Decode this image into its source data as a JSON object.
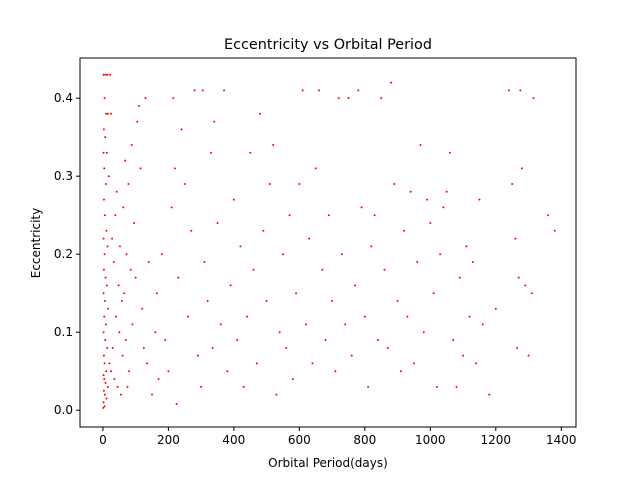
{
  "chart_data": {
    "type": "scatter",
    "title": "Eccentricity vs Orbital Period",
    "xlabel": "Orbital Period(days)",
    "ylabel": "Eccentricity",
    "xlim": [
      -70,
      1445
    ],
    "ylim": [
      -0.0215,
      0.4515
    ],
    "xticks": [
      0,
      200,
      400,
      600,
      800,
      1000,
      1200,
      1400
    ],
    "xtick_labels": [
      "0",
      "200",
      "400",
      "600",
      "800",
      "1000",
      "1200",
      "1400"
    ],
    "yticks": [
      0.0,
      0.1,
      0.2,
      0.3,
      0.4
    ],
    "ytick_labels": [
      "0.0",
      "0.1",
      "0.2",
      "0.3",
      "0.4"
    ],
    "grid": false,
    "marker_color": "#ff0000",
    "series": [
      {
        "points": [
          [
            2,
            0.43
          ],
          [
            8,
            0.43
          ],
          [
            14,
            0.43
          ],
          [
            22,
            0.43
          ],
          [
            5,
            0.4
          ],
          [
            10,
            0.38
          ],
          [
            3,
            0.36
          ],
          [
            15,
            0.38
          ],
          [
            25,
            0.38
          ],
          [
            7,
            0.35
          ],
          [
            2,
            0.33
          ],
          [
            12,
            0.33
          ],
          [
            4,
            0.31
          ],
          [
            18,
            0.3
          ],
          [
            9,
            0.29
          ],
          [
            3,
            0.27
          ],
          [
            6,
            0.25
          ],
          [
            11,
            0.23
          ],
          [
            2,
            0.22
          ],
          [
            14,
            0.21
          ],
          [
            5,
            0.2
          ],
          [
            3,
            0.18
          ],
          [
            8,
            0.17
          ],
          [
            12,
            0.16
          ],
          [
            2,
            0.15
          ],
          [
            6,
            0.14
          ],
          [
            16,
            0.13
          ],
          [
            4,
            0.12
          ],
          [
            9,
            0.11
          ],
          [
            2,
            0.1
          ],
          [
            7,
            0.09
          ],
          [
            13,
            0.08
          ],
          [
            3,
            0.07
          ],
          [
            5,
            0.06
          ],
          [
            10,
            0.05
          ],
          [
            2,
            0.045
          ],
          [
            4,
            0.04
          ],
          [
            8,
            0.035
          ],
          [
            15,
            0.03
          ],
          [
            3,
            0.025
          ],
          [
            6,
            0.02
          ],
          [
            11,
            0.015
          ],
          [
            2,
            0.01
          ],
          [
            5,
            0.005
          ],
          [
            1,
            0.003
          ],
          [
            20,
            0.06
          ],
          [
            25,
            0.05
          ],
          [
            30,
            0.08
          ],
          [
            35,
            0.04
          ],
          [
            40,
            0.12
          ],
          [
            45,
            0.03
          ],
          [
            50,
            0.1
          ],
          [
            55,
            0.02
          ],
          [
            60,
            0.07
          ],
          [
            65,
            0.15
          ],
          [
            70,
            0.09
          ],
          [
            75,
            0.03
          ],
          [
            80,
            0.05
          ],
          [
            85,
            0.18
          ],
          [
            90,
            0.11
          ],
          [
            28,
            0.22
          ],
          [
            33,
            0.19
          ],
          [
            38,
            0.25
          ],
          [
            42,
            0.28
          ],
          [
            48,
            0.16
          ],
          [
            52,
            0.21
          ],
          [
            58,
            0.14
          ],
          [
            62,
            0.26
          ],
          [
            68,
            0.32
          ],
          [
            72,
            0.2
          ],
          [
            78,
            0.29
          ],
          [
            88,
            0.34
          ],
          [
            95,
            0.24
          ],
          [
            100,
            0.17
          ],
          [
            105,
            0.37
          ],
          [
            110,
            0.39
          ],
          [
            115,
            0.31
          ],
          [
            120,
            0.13
          ],
          [
            125,
            0.08
          ],
          [
            130,
            0.4
          ],
          [
            135,
            0.06
          ],
          [
            140,
            0.19
          ],
          [
            150,
            0.02
          ],
          [
            160,
            0.1
          ],
          [
            165,
            0.15
          ],
          [
            170,
            0.04
          ],
          [
            180,
            0.2
          ],
          [
            190,
            0.09
          ],
          [
            200,
            0.05
          ],
          [
            210,
            0.26
          ],
          [
            215,
            0.4
          ],
          [
            220,
            0.31
          ],
          [
            225,
            0.008
          ],
          [
            230,
            0.17
          ],
          [
            240,
            0.36
          ],
          [
            250,
            0.29
          ],
          [
            260,
            0.12
          ],
          [
            270,
            0.23
          ],
          [
            280,
            0.41
          ],
          [
            290,
            0.07
          ],
          [
            300,
            0.03
          ],
          [
            305,
            0.41
          ],
          [
            310,
            0.19
          ],
          [
            320,
            0.14
          ],
          [
            330,
            0.33
          ],
          [
            335,
            0.08
          ],
          [
            340,
            0.37
          ],
          [
            350,
            0.24
          ],
          [
            360,
            0.11
          ],
          [
            370,
            0.41
          ],
          [
            380,
            0.05
          ],
          [
            390,
            0.16
          ],
          [
            400,
            0.27
          ],
          [
            410,
            0.09
          ],
          [
            420,
            0.21
          ],
          [
            430,
            0.03
          ],
          [
            440,
            0.12
          ],
          [
            450,
            0.33
          ],
          [
            460,
            0.18
          ],
          [
            470,
            0.06
          ],
          [
            480,
            0.38
          ],
          [
            490,
            0.23
          ],
          [
            500,
            0.14
          ],
          [
            510,
            0.29
          ],
          [
            520,
            0.34
          ],
          [
            530,
            0.02
          ],
          [
            540,
            0.1
          ],
          [
            550,
            0.2
          ],
          [
            560,
            0.08
          ],
          [
            570,
            0.25
          ],
          [
            580,
            0.04
          ],
          [
            590,
            0.15
          ],
          [
            600,
            0.29
          ],
          [
            610,
            0.41
          ],
          [
            620,
            0.11
          ],
          [
            630,
            0.22
          ],
          [
            640,
            0.06
          ],
          [
            650,
            0.31
          ],
          [
            660,
            0.41
          ],
          [
            670,
            0.18
          ],
          [
            680,
            0.09
          ],
          [
            690,
            0.25
          ],
          [
            700,
            0.14
          ],
          [
            710,
            0.05
          ],
          [
            720,
            0.4
          ],
          [
            730,
            0.2
          ],
          [
            740,
            0.11
          ],
          [
            750,
            0.4
          ],
          [
            760,
            0.07
          ],
          [
            770,
            0.16
          ],
          [
            780,
            0.41
          ],
          [
            790,
            0.26
          ],
          [
            800,
            0.12
          ],
          [
            810,
            0.03
          ],
          [
            820,
            0.21
          ],
          [
            830,
            0.25
          ],
          [
            840,
            0.09
          ],
          [
            850,
            0.4
          ],
          [
            860,
            0.18
          ],
          [
            870,
            0.08
          ],
          [
            880,
            0.42
          ],
          [
            890,
            0.29
          ],
          [
            900,
            0.14
          ],
          [
            910,
            0.05
          ],
          [
            920,
            0.23
          ],
          [
            930,
            0.12
          ],
          [
            940,
            0.28
          ],
          [
            950,
            0.06
          ],
          [
            960,
            0.19
          ],
          [
            970,
            0.34
          ],
          [
            980,
            0.1
          ],
          [
            990,
            0.27
          ],
          [
            1000,
            0.24
          ],
          [
            1010,
            0.15
          ],
          [
            1020,
            0.03
          ],
          [
            1030,
            0.2
          ],
          [
            1040,
            0.26
          ],
          [
            1050,
            0.28
          ],
          [
            1060,
            0.33
          ],
          [
            1070,
            0.09
          ],
          [
            1080,
            0.03
          ],
          [
            1090,
            0.17
          ],
          [
            1100,
            0.07
          ],
          [
            1110,
            0.21
          ],
          [
            1120,
            0.12
          ],
          [
            1130,
            0.19
          ],
          [
            1140,
            0.06
          ],
          [
            1150,
            0.27
          ],
          [
            1160,
            0.11
          ],
          [
            1180,
            0.02
          ],
          [
            1200,
            0.13
          ],
          [
            1240,
            0.41
          ],
          [
            1250,
            0.29
          ],
          [
            1260,
            0.22
          ],
          [
            1265,
            0.08
          ],
          [
            1270,
            0.17
          ],
          [
            1275,
            0.41
          ],
          [
            1280,
            0.31
          ],
          [
            1290,
            0.16
          ],
          [
            1300,
            0.07
          ],
          [
            1310,
            0.15
          ],
          [
            1315,
            0.4
          ],
          [
            1360,
            0.25
          ],
          [
            1380,
            0.23
          ]
        ]
      }
    ]
  }
}
